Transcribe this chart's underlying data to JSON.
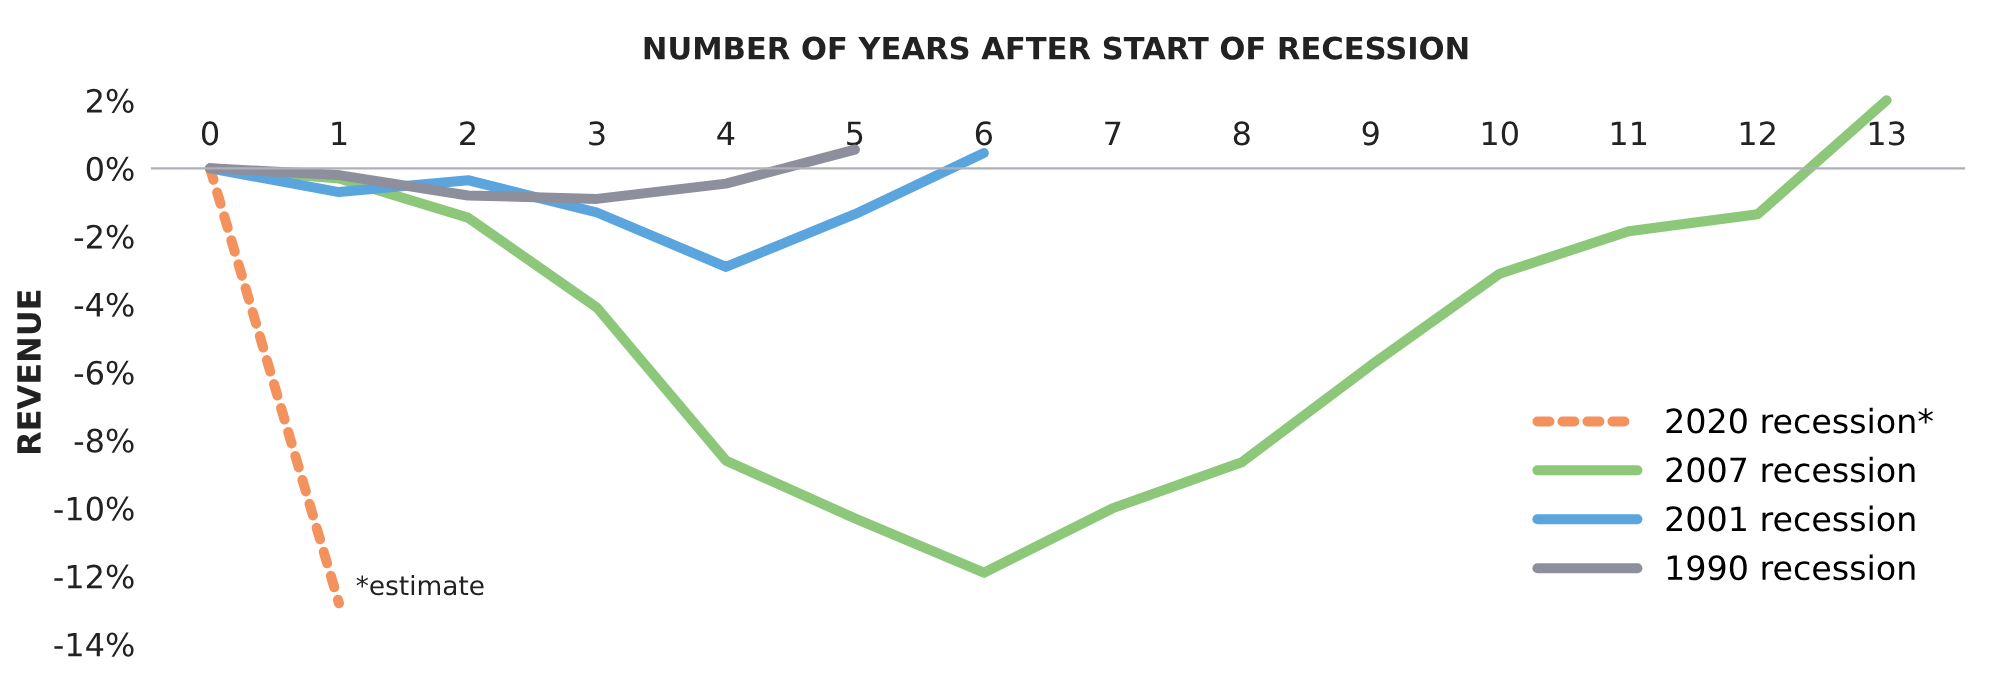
{
  "chart_data": {
    "type": "line",
    "xlabel": "NUMBER OF YEARS AFTER START OF RECESSION",
    "ylabel": "REVENUE",
    "x": [
      0,
      1,
      2,
      3,
      4,
      5,
      6,
      7,
      8,
      9,
      10,
      11,
      12,
      13
    ],
    "xlim": [
      -0.45,
      13.6
    ],
    "xticks": [
      0,
      1,
      2,
      3,
      4,
      5,
      6,
      7,
      8,
      9,
      10,
      11,
      12,
      13
    ],
    "ylim": [
      -14,
      2
    ],
    "yticks": [
      {
        "value": 2,
        "label": "2%"
      },
      {
        "value": 0,
        "label": "0%"
      },
      {
        "value": -2,
        "label": "-2%"
      },
      {
        "value": -4,
        "label": "-4%"
      },
      {
        "value": -6,
        "label": "-6%"
      },
      {
        "value": -8,
        "label": "-8%"
      },
      {
        "value": -10,
        "label": "-10%"
      },
      {
        "value": -12,
        "label": "-12%"
      },
      {
        "value": -14,
        "label": "-14%"
      }
    ],
    "series": [
      {
        "name": "2020 recession*",
        "color": "#f4925e",
        "line_style": "dashed",
        "x": [
          0,
          1
        ],
        "values": [
          0,
          -12.8
        ]
      },
      {
        "name": "2007 recession",
        "color": "#8dc87a",
        "values": [
          0,
          -0.3,
          -1.45,
          -4.1,
          -8.6,
          -10.3,
          -11.9,
          -10.0,
          -8.65,
          -5.8,
          -3.1,
          -1.85,
          -1.35,
          2.0
        ]
      },
      {
        "name": "2001 recession",
        "color": "#5aa5de",
        "x": [
          0,
          1,
          2,
          3,
          4,
          5,
          6
        ],
        "values": [
          0,
          -0.7,
          -0.35,
          -1.3,
          -2.9,
          -1.35,
          0.45
        ]
      },
      {
        "name": "1990 recession",
        "color": "#8e8f9c",
        "x": [
          0,
          1,
          2,
          3,
          4,
          5
        ],
        "values": [
          0,
          -0.2,
          -0.8,
          -0.9,
          -0.45,
          0.55
        ]
      }
    ],
    "annotations": [
      {
        "text": "*estimate",
        "x": 1,
        "y": -12.8
      }
    ],
    "legend": "right",
    "grid": false,
    "marker": "none"
  }
}
